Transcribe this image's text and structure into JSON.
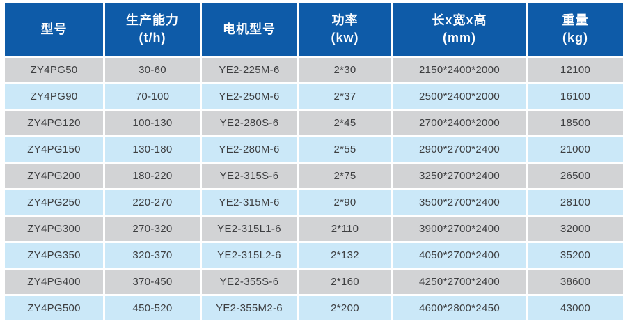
{
  "colors": {
    "header_bg": "#0e5ba8",
    "header_text": "#ffffff",
    "row_gray": "#d2d3d5",
    "row_light_blue": "#cbe8f8",
    "body_text": "#3d3e40",
    "gap": "#ffffff"
  },
  "table": {
    "header": [
      {
        "line1": "型号",
        "line2": ""
      },
      {
        "line1": "生产能力",
        "line2": "(t/h)"
      },
      {
        "line1": "电机型号",
        "line2": ""
      },
      {
        "line1": "功率",
        "line2": "(kw)"
      },
      {
        "line1": "长x宽x高",
        "line2": "(mm)"
      },
      {
        "line1": "重量",
        "line2": "(kg)"
      }
    ]
  },
  "chart_data": {
    "type": "table",
    "title": "",
    "columns": [
      "型号",
      "生产能力(t/h)",
      "电机型号",
      "功率(kw)",
      "长x宽x高(mm)",
      "重量(kg)"
    ],
    "rows": [
      [
        "ZY4PG50",
        "30-60",
        "YE2-225M-6",
        "2*30",
        "2150*2400*2000",
        "12100"
      ],
      [
        "ZY4PG90",
        "70-100",
        "YE2-250M-6",
        "2*37",
        "2500*2400*2000",
        "16100"
      ],
      [
        "ZY4PG120",
        "100-130",
        "YE2-280S-6",
        "2*45",
        "2700*2400*2000",
        "18500"
      ],
      [
        "ZY4PG150",
        "130-180",
        "YE2-280M-6",
        "2*55",
        "2900*2700*2400",
        "21000"
      ],
      [
        "ZY4PG200",
        "180-220",
        "YE2-315S-6",
        "2*75",
        "3250*2700*2400",
        "26500"
      ],
      [
        "ZY4PG250",
        "220-270",
        "YE2-315M-6",
        "2*90",
        "3500*2700*2400",
        "28100"
      ],
      [
        "ZY4PG300",
        "270-320",
        "YE2-315L1-6",
        "2*110",
        "3900*2700*2400",
        "32000"
      ],
      [
        "ZY4PG350",
        "320-370",
        "YE2-315L2-6",
        "2*132",
        "4050*2700*2400",
        "35200"
      ],
      [
        "ZY4PG400",
        "370-450",
        "YE2-355S-6",
        "2*160",
        "4250*2700*2400",
        "38600"
      ],
      [
        "ZY4PG500",
        "450-520",
        "YE2-355M2-6",
        "2*200",
        "4600*2800*2450",
        "43000"
      ]
    ]
  }
}
